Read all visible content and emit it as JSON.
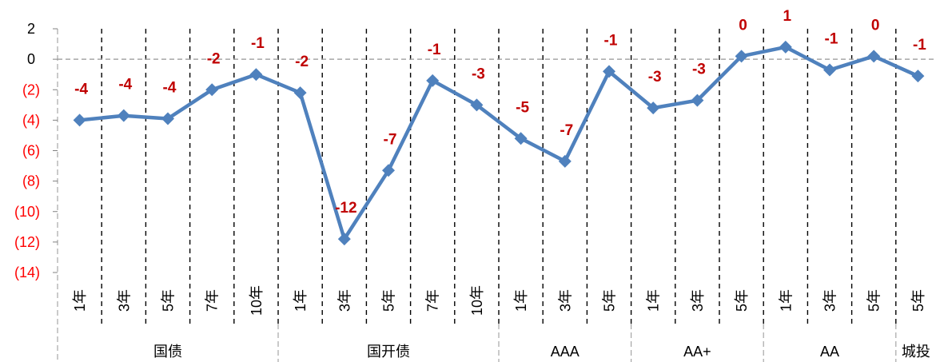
{
  "chart_data": {
    "type": "line",
    "ylim": [
      -14,
      2
    ],
    "y_ticks": [
      {
        "value": 2,
        "label": "2"
      },
      {
        "value": 0,
        "label": "0"
      },
      {
        "value": -2,
        "label": "(2)"
      },
      {
        "value": -4,
        "label": "(4)"
      },
      {
        "value": -6,
        "label": "(6)"
      },
      {
        "value": -8,
        "label": "(8)"
      },
      {
        "value": -10,
        "label": "(10)"
      },
      {
        "value": -12,
        "label": "(12)"
      },
      {
        "value": -14,
        "label": "(14)"
      }
    ],
    "category_groups": [
      {
        "label": "国债",
        "categories": [
          "1年",
          "3年",
          "5年",
          "7年",
          "10年"
        ]
      },
      {
        "label": "国开债",
        "categories": [
          "1年",
          "3年",
          "5年",
          "7年",
          "10年"
        ]
      },
      {
        "label": "AAA",
        "categories": [
          "1年",
          "3年",
          "5年"
        ]
      },
      {
        "label": "AA+",
        "categories": [
          "1年",
          "3年",
          "5年"
        ]
      },
      {
        "label": "AA",
        "categories": [
          "1年",
          "3年",
          "5年"
        ]
      },
      {
        "label": "城投",
        "categories": [
          "5年"
        ]
      }
    ],
    "series": [
      {
        "values": [
          -4.0,
          -3.7,
          -3.9,
          -2.0,
          -1.0,
          -2.2,
          -11.8,
          -7.3,
          -1.4,
          -3.0,
          -5.2,
          -6.7,
          -0.8,
          -3.2,
          -2.7,
          0.2,
          0.8,
          -0.7,
          0.2,
          -1.1
        ],
        "data_labels": [
          "-4",
          "-4",
          "-4",
          "-2",
          "-1",
          "-2",
          "-12",
          "-7",
          "-1",
          "-3",
          "-5",
          "-7",
          "-1",
          "-3",
          "-3",
          "0",
          "1",
          "-1",
          "0",
          "-1"
        ],
        "color": "#4F81BD",
        "marker": "diamond"
      }
    ],
    "vertical_gridlines": true,
    "horizontal_gridlines": false,
    "zero_line": true,
    "colors": {
      "data_label": "#C00000",
      "negative_tick": "#FF0000",
      "tick": "#000000"
    }
  }
}
